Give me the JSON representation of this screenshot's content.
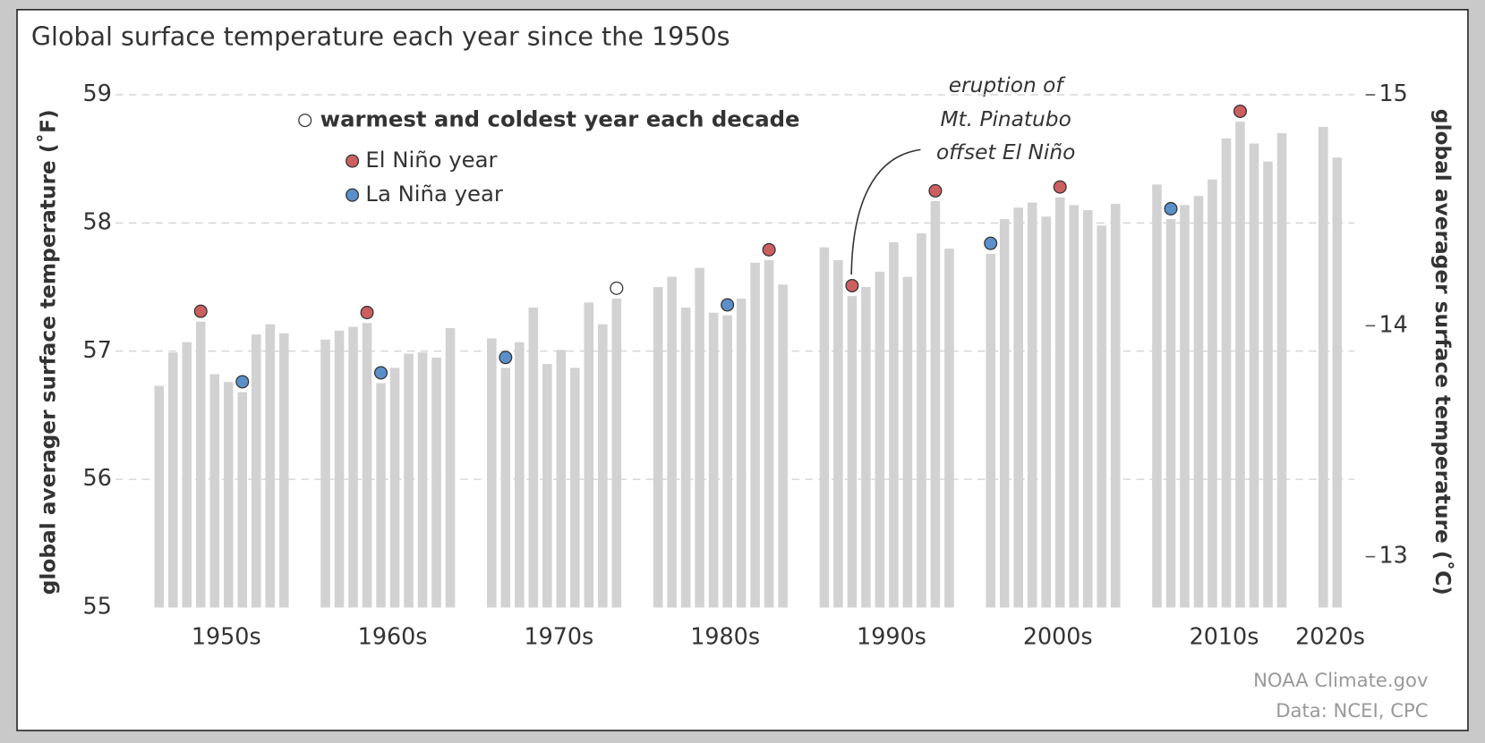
{
  "chart_data": {
    "type": "bar",
    "title": "Global surface temperature each year since the 1950s",
    "ylabel": "global averager surface temperature (˚F)",
    "y2label": "global averager surface temperature (˚C)",
    "categories": [
      "1950s",
      "1960s",
      "1970s",
      "1980s",
      "1990s",
      "2000s",
      "2010s",
      "2020s"
    ],
    "values": [
      [
        56.73,
        56.99,
        57.07,
        57.23,
        56.82,
        56.76,
        56.68,
        57.13,
        57.21,
        57.14
      ],
      [
        57.09,
        57.16,
        57.19,
        57.22,
        56.75,
        56.87,
        56.98,
        56.99,
        56.95,
        57.18
      ],
      [
        57.1,
        56.87,
        57.07,
        57.34,
        56.9,
        57.01,
        56.87,
        57.38,
        57.21,
        57.41
      ],
      [
        57.5,
        57.58,
        57.34,
        57.65,
        57.3,
        57.28,
        57.41,
        57.69,
        57.71,
        57.52
      ],
      [
        57.81,
        57.71,
        57.43,
        57.5,
        57.62,
        57.85,
        57.58,
        57.92,
        58.17,
        57.8
      ],
      [
        57.76,
        58.03,
        58.12,
        58.16,
        58.05,
        58.2,
        58.14,
        58.1,
        57.98,
        58.15
      ],
      [
        58.3,
        58.03,
        58.14,
        58.21,
        58.34,
        58.66,
        58.79,
        58.62,
        58.48,
        58.7
      ],
      [
        58.75,
        58.51
      ]
    ],
    "color": "#d2d2d2",
    "markers": [
      {
        "name": "warmest and coldest year each decade",
        "color": "#ffffff",
        "values": [
          [
            null,
            null,
            null,
            null,
            null,
            null,
            null,
            null,
            null,
            null
          ],
          [
            null,
            null,
            null,
            null,
            null,
            null,
            null,
            null,
            null,
            null
          ],
          [
            null,
            null,
            null,
            null,
            null,
            null,
            null,
            null,
            null,
            57.41
          ],
          [
            null,
            null,
            null,
            null,
            null,
            null,
            null,
            null,
            null,
            null
          ],
          [
            null,
            null,
            null,
            null,
            null,
            null,
            null,
            null,
            null,
            null
          ],
          [
            null,
            null,
            null,
            null,
            null,
            null,
            null,
            null,
            null,
            null
          ],
          [
            null,
            null,
            null,
            null,
            null,
            null,
            null,
            null,
            null,
            null
          ],
          [
            null,
            null
          ]
        ]
      },
      {
        "name": "El Niño year",
        "color": "#cc5f5f",
        "values": [
          [
            null,
            null,
            null,
            57.23,
            null,
            null,
            null,
            null,
            null,
            null
          ],
          [
            null,
            null,
            null,
            57.22,
            null,
            null,
            null,
            null,
            null,
            null
          ],
          [
            null,
            null,
            null,
            null,
            null,
            null,
            null,
            null,
            null,
            null
          ],
          [
            null,
            null,
            null,
            null,
            null,
            null,
            null,
            null,
            57.71,
            null
          ],
          [
            null,
            null,
            57.43,
            null,
            null,
            null,
            null,
            null,
            58.17,
            null
          ],
          [
            null,
            null,
            null,
            null,
            null,
            58.2,
            null,
            null,
            null,
            null
          ],
          [
            null,
            null,
            null,
            null,
            null,
            null,
            58.79,
            null,
            null,
            null
          ],
          [
            null,
            null
          ]
        ]
      },
      {
        "name": "La Niña year",
        "color": "#5b8fc9",
        "values": [
          [
            null,
            null,
            null,
            null,
            null,
            null,
            56.68,
            null,
            null,
            null
          ],
          [
            null,
            null,
            null,
            null,
            56.75,
            null,
            null,
            null,
            null,
            null
          ],
          [
            null,
            56.87,
            null,
            null,
            null,
            null,
            null,
            null,
            null,
            null
          ],
          [
            null,
            null,
            null,
            null,
            null,
            57.28,
            null,
            null,
            null,
            null
          ],
          [
            null,
            null,
            null,
            null,
            null,
            null,
            null,
            null,
            null,
            null
          ],
          [
            57.76,
            null,
            null,
            null,
            null,
            null,
            null,
            null,
            null,
            null
          ],
          [
            null,
            58.03,
            null,
            null,
            null,
            null,
            null,
            null,
            null,
            null
          ],
          [
            null,
            null
          ]
        ]
      }
    ],
    "ylim": [
      55,
      59
    ],
    "yticks": [
      55,
      56,
      57,
      58,
      59
    ],
    "y2lim": [
      12.78,
      15
    ],
    "y2ticks": [
      13,
      14,
      15
    ],
    "grid": true,
    "annotation": [
      "eruption of",
      "Mt. Pinatubo",
      "offset El Niño"
    ],
    "source": [
      "NOAA Climate.gov",
      "Data: NCEI, CPC"
    ]
  }
}
